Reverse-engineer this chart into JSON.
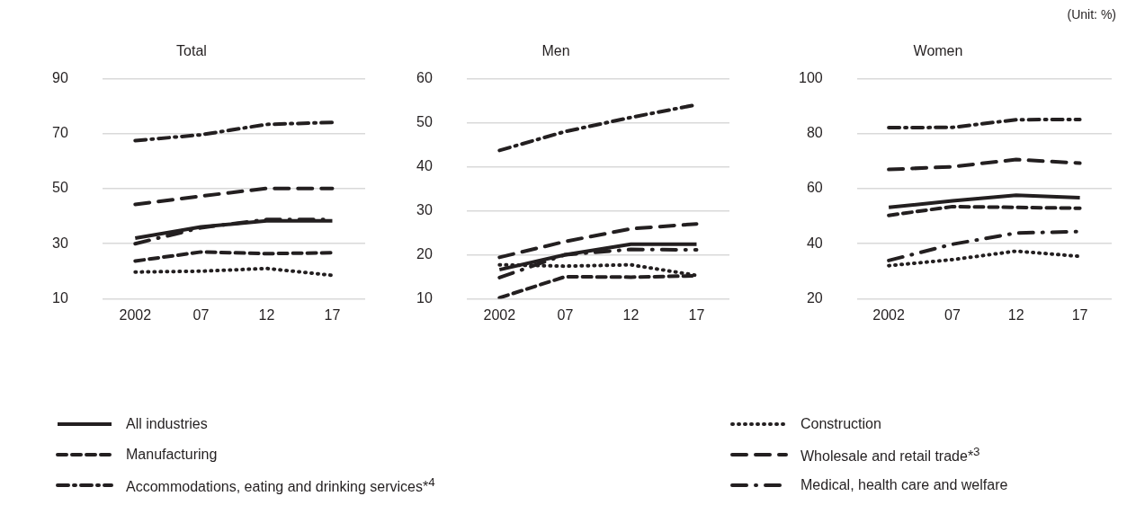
{
  "chart_data": [
    {
      "type": "line",
      "title": "Total",
      "categories": [
        "2002",
        "07",
        "12",
        "17"
      ],
      "ylim": [
        10,
        90
      ],
      "yticks": [
        10,
        30,
        50,
        70,
        90
      ],
      "grid": "y",
      "legend": "bottom",
      "marker": "none",
      "annotations": [
        "(Unit: %)"
      ],
      "series": [
        {
          "name": "All industries",
          "color": "#231f20",
          "line_style": "solid",
          "values": [
            32,
            36.1,
            38.3,
            38.3
          ]
        },
        {
          "name": "Manufacturing",
          "color": "#231f20",
          "line_style": "dashed",
          "values": [
            23.7,
            27,
            26.4,
            26.7
          ]
        },
        {
          "name": "Accommodations, eating and drinking services*$^{4}$",
          "color": "#231f20",
          "line_style": "dashdot",
          "values": [
            67.5,
            69.6,
            73.4,
            74.1
          ]
        },
        {
          "name": "Construction",
          "color": "#231f20",
          "line_style": "dotted",
          "values": [
            19.7,
            20,
            21,
            18.5
          ]
        },
        {
          "name": "Wholesale and retail trade*$^{3}$",
          "color": "#231f20",
          "line_style": "longdash",
          "values": [
            44.3,
            47.3,
            50.1,
            50.1
          ]
        },
        {
          "name": "Medical, health care and welfare",
          "color": "#231f20",
          "line_style": "longdashdot",
          "values": [
            30,
            35.8,
            38.8,
            38.8
          ]
        }
      ]
    },
    {
      "type": "line",
      "title": "Men",
      "categories": [
        "2002",
        "07",
        "12",
        "17"
      ],
      "ylim": [
        10,
        60
      ],
      "yticks": [
        10,
        20,
        30,
        40,
        50,
        60
      ],
      "grid": "y",
      "marker": "none",
      "series": [
        {
          "color": "#231f20",
          "line_style": "solid",
          "values": [
            16.6,
            20,
            22.4,
            22.4
          ]
        },
        {
          "color": "#231f20",
          "line_style": "dashed",
          "values": [
            10.2,
            15,
            14.9,
            15.2
          ]
        },
        {
          "color": "#231f20",
          "line_style": "dashdot",
          "values": [
            43.7,
            48,
            51.2,
            54.1
          ]
        },
        {
          "color": "#231f20",
          "line_style": "dotted",
          "values": [
            17.7,
            17.4,
            17.7,
            15.3
          ]
        },
        {
          "color": "#231f20",
          "line_style": "longdash",
          "values": [
            19.4,
            23,
            25.9,
            27
          ]
        },
        {
          "color": "#231f20",
          "line_style": "longdashdot",
          "values": [
            14.8,
            20,
            21.2,
            21.1
          ]
        }
      ]
    },
    {
      "type": "line",
      "title": "Women",
      "categories": [
        "2002",
        "07",
        "12",
        "17"
      ],
      "ylim": [
        20,
        100
      ],
      "yticks": [
        20,
        40,
        60,
        80,
        100
      ],
      "grid": "y",
      "marker": "none",
      "series": [
        {
          "color": "#231f20",
          "line_style": "solid",
          "values": [
            53.2,
            55.6,
            57.6,
            56.7
          ]
        },
        {
          "color": "#231f20",
          "line_style": "dashed",
          "values": [
            50.3,
            53.5,
            53.2,
            52.9
          ]
        },
        {
          "color": "#231f20",
          "line_style": "dashdot",
          "values": [
            82.2,
            82.3,
            85.1,
            85.2
          ]
        },
        {
          "color": "#231f20",
          "line_style": "dotted",
          "values": [
            32,
            34.2,
            37.3,
            35.4
          ]
        },
        {
          "color": "#231f20",
          "line_style": "longdash",
          "values": [
            67,
            68,
            70.6,
            69.3
          ]
        },
        {
          "color": "#231f20",
          "line_style": "longdashdot",
          "values": [
            33.9,
            39.8,
            43.9,
            44.4
          ]
        }
      ]
    }
  ]
}
